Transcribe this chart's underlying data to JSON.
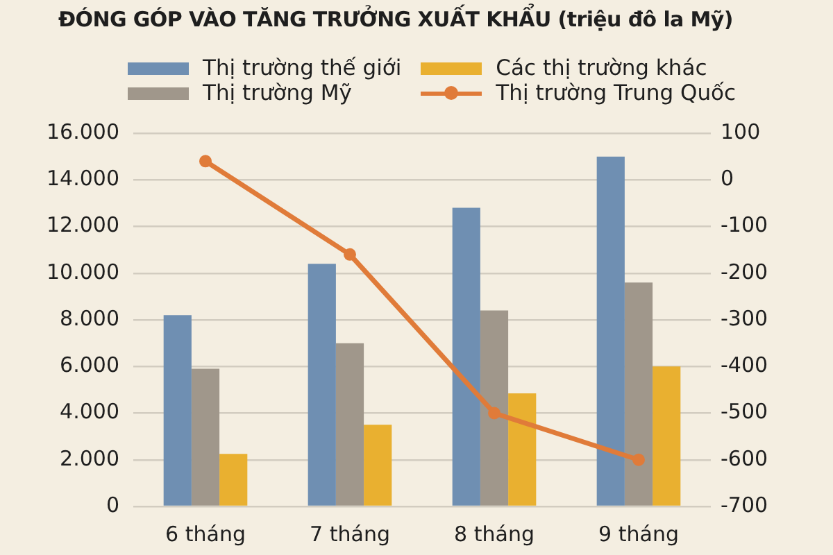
{
  "chart_data": {
    "type": "bar",
    "title": "ĐÓNG GÓP VÀO TĂNG TRƯỞNG XUẤT KHẨU (triệu đô la Mỹ)",
    "categories": [
      "6 tháng",
      "7 tháng",
      "8 tháng",
      "9 tháng"
    ],
    "series": [
      {
        "name": "Thị trường thế giới",
        "color": "#6f8fb2",
        "values": [
          8200,
          10400,
          12800,
          15000
        ]
      },
      {
        "name": "Thị trường Mỹ",
        "color": "#a0978b",
        "values": [
          5900,
          7000,
          8400,
          9600
        ]
      },
      {
        "name": "Các thị trường khác",
        "color": "#e9b030",
        "values": [
          2250,
          3500,
          4850,
          6000
        ]
      },
      {
        "name": "Thị trường Trung Quốc",
        "type": "line",
        "axis": "y2",
        "color": "#e07b39",
        "values": [
          40,
          -160,
          -500,
          -600
        ]
      }
    ],
    "ylim": [
      0,
      16000
    ],
    "yticks": [
      {
        "value": 0,
        "label": "0"
      },
      {
        "value": 2000,
        "label": "2.000"
      },
      {
        "value": 4000,
        "label": "4.000"
      },
      {
        "value": 6000,
        "label": "6.000"
      },
      {
        "value": 8000,
        "label": "8.000"
      },
      {
        "value": 10000,
        "label": "10.000"
      },
      {
        "value": 12000,
        "label": "12.000"
      },
      {
        "value": 14000,
        "label": "14.000"
      },
      {
        "value": 16000,
        "label": "16.000"
      }
    ],
    "y2lim": [
      -700,
      100
    ],
    "y2ticks": [
      -700,
      -600,
      -500,
      -400,
      -300,
      -200,
      -100,
      0,
      100
    ],
    "grid": "y",
    "legend": "top",
    "marker": "circle"
  }
}
